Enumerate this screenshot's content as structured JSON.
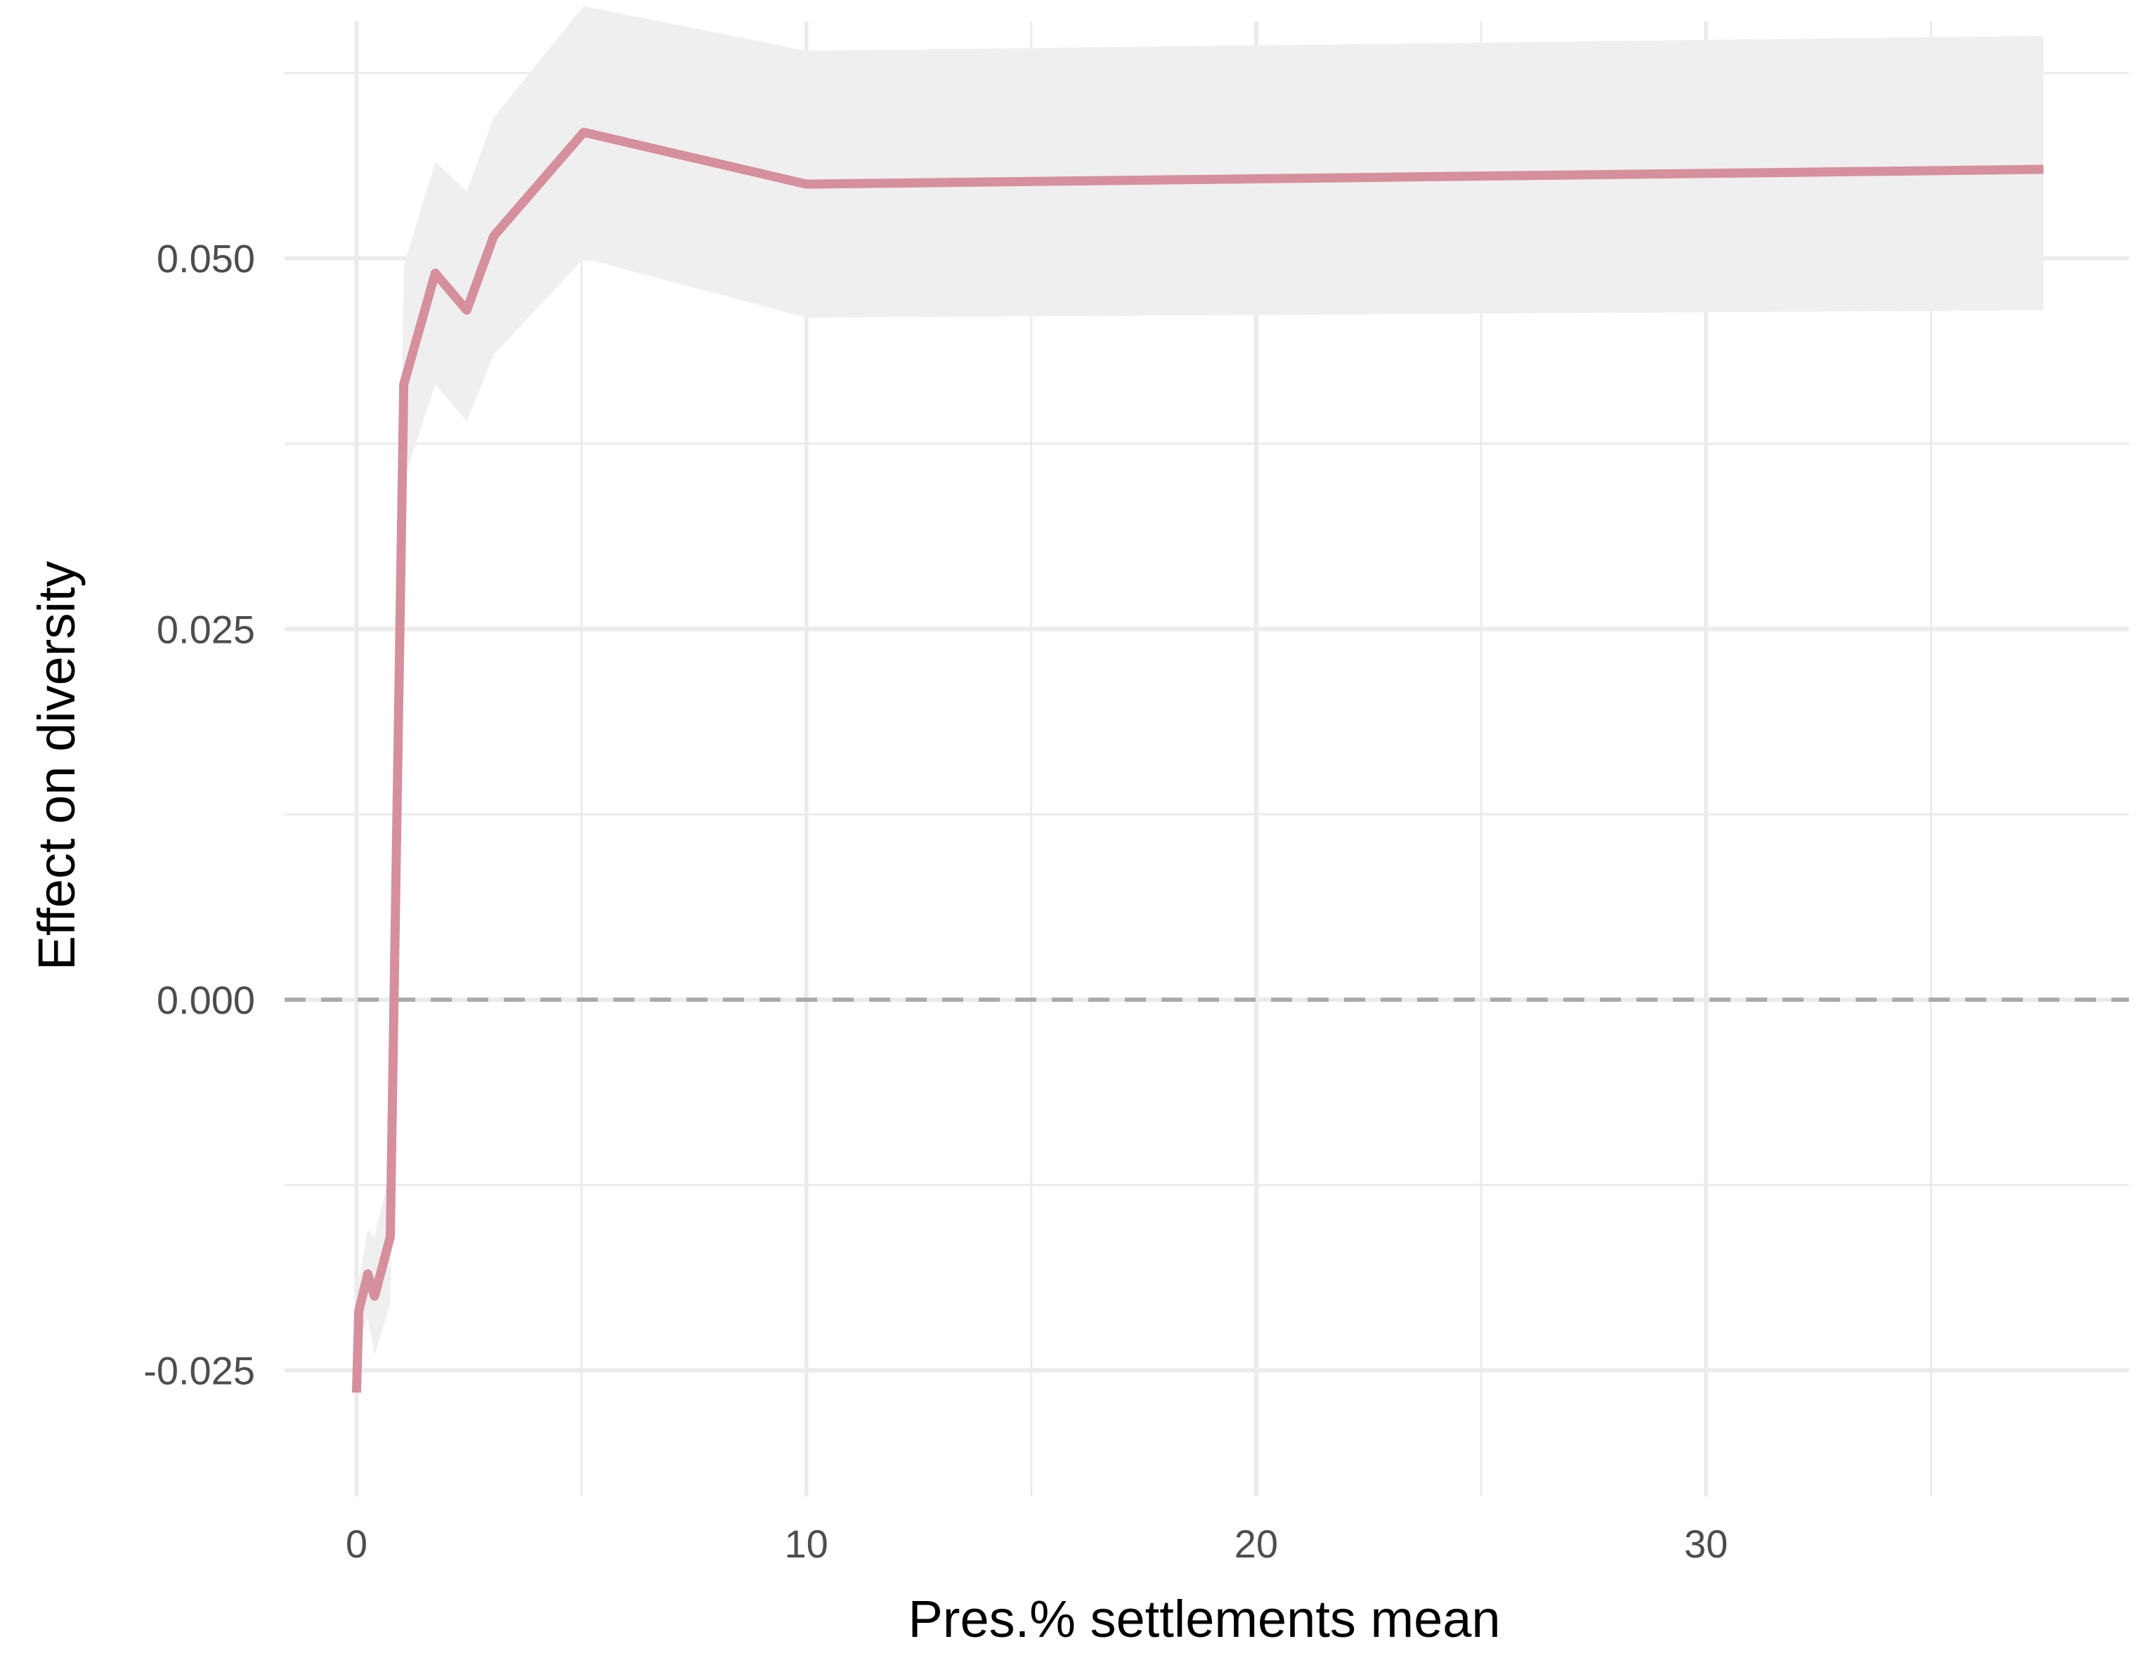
{
  "chart_data": {
    "type": "line",
    "title": "",
    "xlabel": "Pres.% settlements mean",
    "ylabel": "Effect on diversity",
    "xlim": [
      -1.6,
      39.4
    ],
    "ylim": [
      -0.0335,
      0.066
    ],
    "x_ticks": [
      0,
      10,
      20,
      30
    ],
    "x_tick_labels": [
      "0",
      "10",
      "20",
      "30"
    ],
    "y_ticks": [
      -0.025,
      0.0,
      0.025,
      0.05
    ],
    "y_tick_labels": [
      "-0.025",
      "0.000",
      "0.025",
      "0.050"
    ],
    "grid": true,
    "reference_line": {
      "y": 0.0,
      "style": "dashed",
      "color": "#aaaaaa"
    },
    "series": [
      {
        "line_color": "#d68f9c",
        "band_color": "#efefef",
        "points": [
          {
            "x": 0.0,
            "y": -0.0265,
            "lower": -0.0265,
            "upper": -0.0265
          },
          {
            "x": 0.05,
            "y": -0.021,
            "lower": -0.023,
            "upper": -0.019
          },
          {
            "x": 0.25,
            "y": -0.0185,
            "lower": -0.0215,
            "upper": -0.0155
          },
          {
            "x": 0.4,
            "y": -0.02,
            "lower": -0.024,
            "upper": -0.016
          },
          {
            "x": 0.75,
            "y": -0.016,
            "lower": -0.0205,
            "upper": -0.0115
          },
          {
            "x": 1.05,
            "y": 0.0415,
            "lower": 0.035,
            "upper": 0.0495
          },
          {
            "x": 1.75,
            "y": 0.049,
            "lower": 0.0415,
            "upper": 0.0565
          },
          {
            "x": 2.45,
            "y": 0.0465,
            "lower": 0.039,
            "upper": 0.0545
          },
          {
            "x": 3.05,
            "y": 0.0515,
            "lower": 0.0435,
            "upper": 0.0595
          },
          {
            "x": 5.05,
            "y": 0.0585,
            "lower": 0.05,
            "upper": 0.067
          },
          {
            "x": 10.0,
            "y": 0.055,
            "lower": 0.046,
            "upper": 0.064
          },
          {
            "x": 37.5,
            "y": 0.056,
            "lower": 0.0465,
            "upper": 0.065
          }
        ]
      }
    ]
  }
}
